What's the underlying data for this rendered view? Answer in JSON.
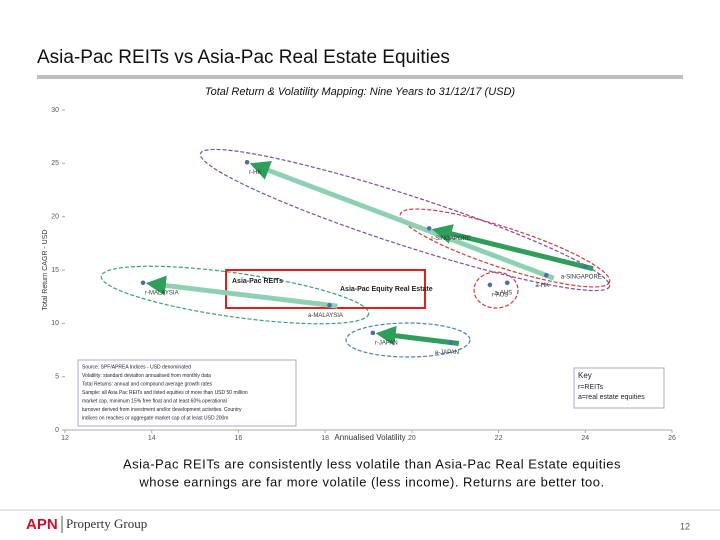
{
  "slide": {
    "title": "Asia-Pac REITs vs Asia-Pac Real Estate Equities",
    "caption": [
      "Asia-Pac REITs are consistently less volatile than Asia-Pac Real Estate equities",
      "whose earnings are far more volatile (less income). Returns are better too."
    ],
    "logo": [
      "APN",
      "Property Group"
    ],
    "page_number": "12"
  },
  "chart_data": {
    "type": "scatter",
    "subtitle": "Total Return & Volatility Mapping: Nine Years to 31/12/17 (USD)",
    "x_label": "Annualised Volatility",
    "y_label": "Total Return CAGR - USD",
    "xlim": [
      12,
      26
    ],
    "xticks": [
      12,
      14,
      16,
      18,
      20,
      22,
      24,
      26
    ],
    "ylim": [
      0,
      30
    ],
    "yticks": [
      0,
      5,
      10,
      15,
      20,
      25,
      30
    ],
    "series": [
      {
        "name": "r=REITs",
        "color": "#4a6fa5",
        "x": [
          16.2,
          20.4,
          13.8,
          21.8,
          19.1
        ],
        "y": [
          25.1,
          18.9,
          13.8,
          13.6,
          9.1
        ],
        "labels": [
          "r-HK",
          "r-SINGAPORE",
          "r-MALAYSIA",
          "r-AUS",
          "r-JAPAN"
        ]
      },
      {
        "name": "a=real estate equities",
        "color": "#4a6fa5",
        "x": [
          23.1,
          24.0,
          18.1,
          22.2,
          20.9
        ],
        "y": [
          14.5,
          15.3,
          11.7,
          13.8,
          8.2
        ],
        "labels": [
          "a-HK",
          "a-SINGAPORE",
          "a-MALAYSIA",
          "a-AUS",
          "a-JAPAN"
        ]
      }
    ],
    "legend_title": "Key",
    "annotations": [
      "Asia-Pac REITs",
      "Asia-Pac Equity Real Estate"
    ],
    "note": [
      "Source: SPF/APREA Indices - USD denominated",
      "Volatility: standard deviation annualised from monthly data",
      "Total Returns: annual and compound average growth rates",
      "Sample: all Asia Pac REITs and listed equities of more than USD 50 million",
      "market cap, minimum 15% free float and at least 60% operational",
      "turnover derived from investment and/or development activities. Country",
      "indices on reaches or aggregate market cap of at least USD 200m"
    ]
  }
}
